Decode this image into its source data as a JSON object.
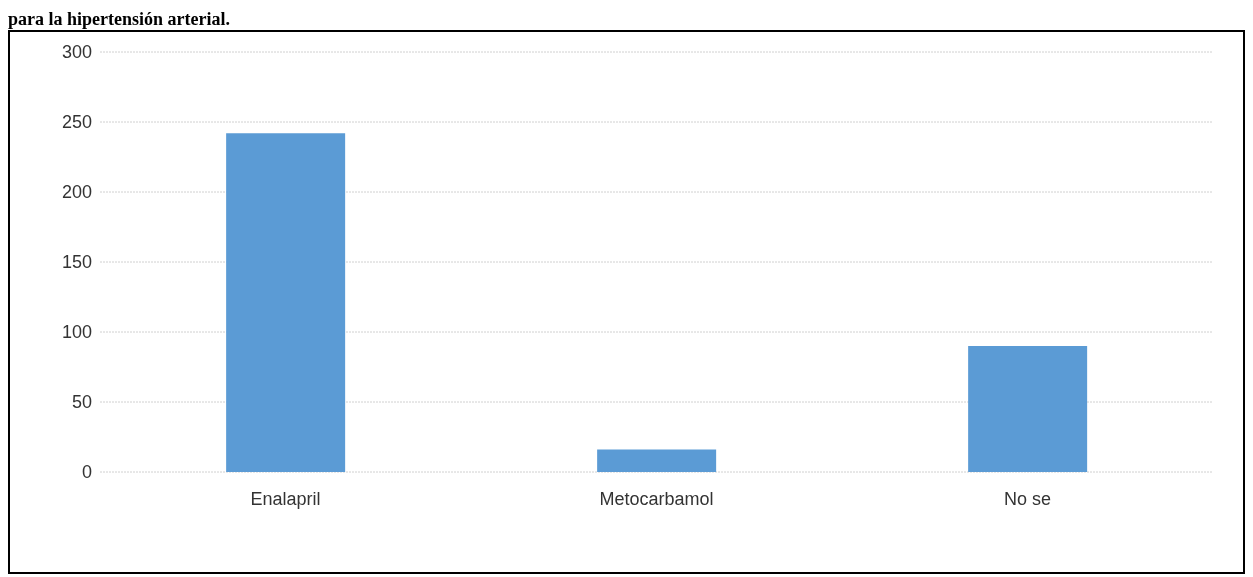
{
  "chart_data": {
    "type": "bar",
    "title": "para la hipertensión arterial.",
    "categories": [
      "Enalapril",
      "Metocarbamol",
      "No se"
    ],
    "values": [
      242,
      16,
      90
    ],
    "color": "#5b9bd5",
    "ylim": [
      0,
      300
    ],
    "yticks": [
      0,
      50,
      100,
      150,
      200,
      250,
      300
    ],
    "grid": "y"
  }
}
